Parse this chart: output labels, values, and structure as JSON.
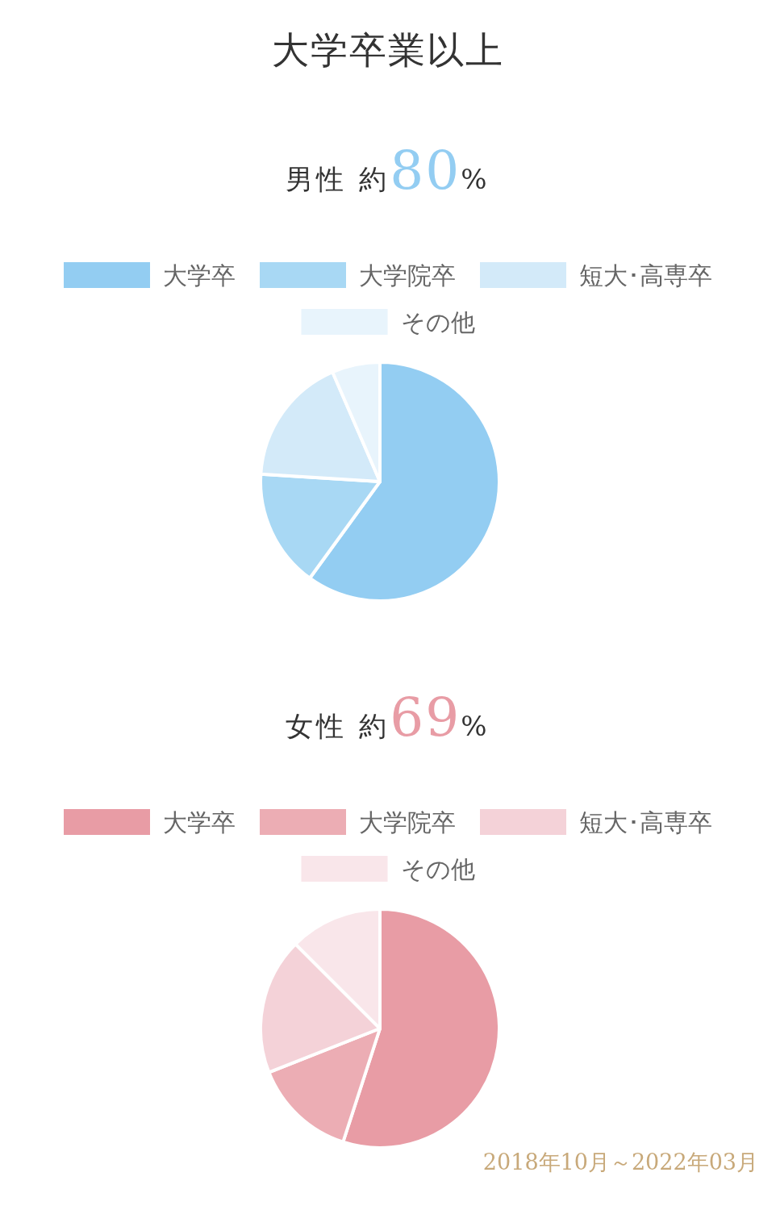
{
  "chart_data": [
    {
      "type": "pie",
      "title": "大学卒業以上",
      "subtitle": "男性 約80%",
      "categories": [
        "大学卒",
        "大学院卒",
        "短大･高専卒",
        "その他"
      ],
      "values": [
        60,
        16,
        17.5,
        6.5
      ],
      "colors": [
        "#93cdf2",
        "#a8d8f4",
        "#d3eaf9",
        "#e8f4fc"
      ],
      "legend": "top"
    },
    {
      "type": "pie",
      "subtitle": "女性 約69%",
      "categories": [
        "大学卒",
        "大学院卒",
        "短大･高専卒",
        "その他"
      ],
      "values": [
        55,
        14,
        18.5,
        12.5
      ],
      "colors": [
        "#e89ca5",
        "#ecadb4",
        "#f4d2d8",
        "#f9e6ea"
      ],
      "legend": "top",
      "annotations": [
        "2018年10月～2022年03月"
      ]
    }
  ]
}
